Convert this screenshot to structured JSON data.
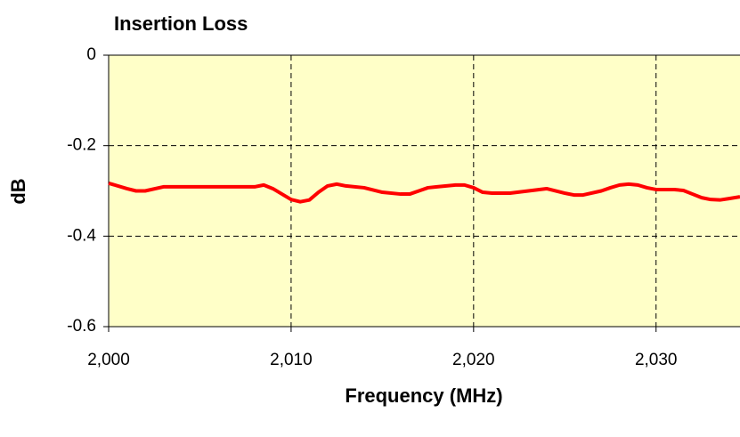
{
  "chart_data": {
    "type": "line",
    "title": "Insertion Loss",
    "x_label": "Frequency (MHz)",
    "y_label": "dB",
    "x": [
      2000,
      2001,
      2001.5,
      2002,
      2003,
      2004,
      2005,
      2006,
      2007,
      2008,
      2008.5,
      2009,
      2009.5,
      2010,
      2010.5,
      2011,
      2011.5,
      2012,
      2012.5,
      2013,
      2014,
      2015,
      2016,
      2016.5,
      2017,
      2017.5,
      2018,
      2019,
      2019.5,
      2020,
      2020.5,
      2021,
      2022,
      2023,
      2024,
      2025,
      2025.5,
      2026,
      2027,
      2027.5,
      2028,
      2028.5,
      2029,
      2029.5,
      2030,
      2031,
      2031.5,
      2032,
      2032.5,
      2033,
      2033.5,
      2034,
      2034.6
    ],
    "series": [
      {
        "name": "Insertion Loss",
        "color": "#ff0000",
        "values": [
          -0.283,
          -0.295,
          -0.3,
          -0.3,
          -0.291,
          -0.291,
          -0.291,
          -0.291,
          -0.291,
          -0.291,
          -0.287,
          -0.295,
          -0.307,
          -0.319,
          -0.324,
          -0.32,
          -0.303,
          -0.289,
          -0.285,
          -0.289,
          -0.293,
          -0.303,
          -0.307,
          -0.307,
          -0.3,
          -0.293,
          -0.291,
          -0.287,
          -0.287,
          -0.293,
          -0.303,
          -0.305,
          -0.305,
          -0.3,
          -0.295,
          -0.305,
          -0.309,
          -0.309,
          -0.3,
          -0.293,
          -0.287,
          -0.285,
          -0.287,
          -0.293,
          -0.297,
          -0.297,
          -0.299,
          -0.307,
          -0.315,
          -0.319,
          -0.32,
          -0.317,
          -0.313
        ]
      }
    ],
    "xlim": [
      2000,
      2034.6
    ],
    "ylim": [
      -0.6,
      0
    ],
    "xticks": [
      {
        "value": 2000,
        "label": "2,000"
      },
      {
        "value": 2010,
        "label": "2,010"
      },
      {
        "value": 2020,
        "label": "2,020"
      },
      {
        "value": 2030,
        "label": "2,030"
      }
    ],
    "yticks": [
      0,
      -0.2,
      -0.4,
      -0.6
    ],
    "grid": true,
    "background": "#ffffc8"
  }
}
